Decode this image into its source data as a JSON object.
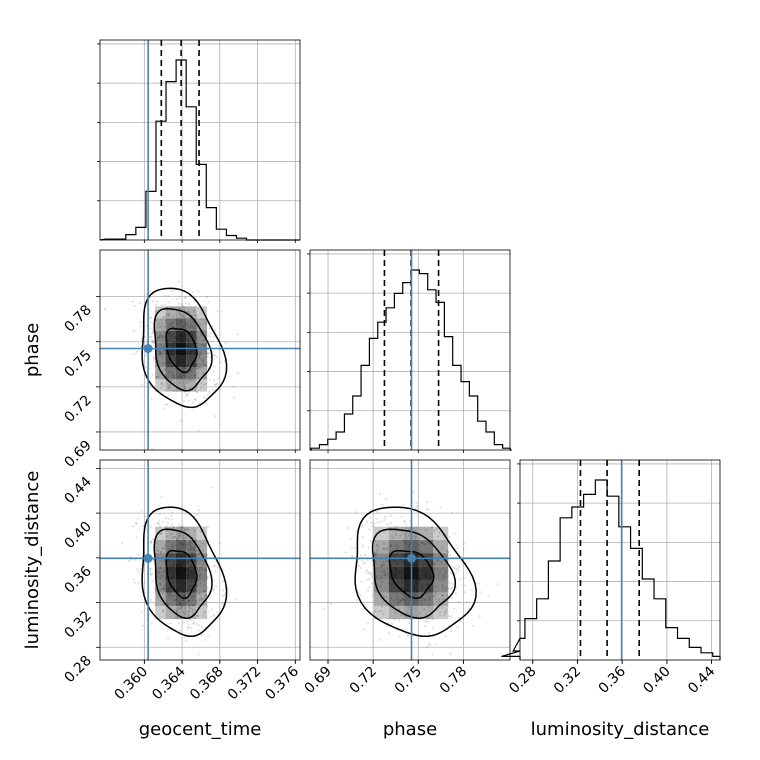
{
  "chart_data": {
    "type": "corner",
    "parameters": [
      "geocent_time",
      "phase",
      "luminosity_distance"
    ],
    "truths": {
      "geocent_time": 0.3604,
      "phase": 0.7455,
      "luminosity_distance": 0.3595
    },
    "medians": {
      "geocent_time": 0.3639,
      "phase": 0.7452,
      "luminosity_distance": 0.3465
    },
    "quantile_16": {
      "geocent_time": 0.3618,
      "phase": 0.7275,
      "luminosity_distance": 0.3227
    },
    "quantile_84": {
      "geocent_time": 0.3658,
      "phase": 0.7635,
      "luminosity_distance": 0.3752
    },
    "ranges": {
      "geocent_time": [
        0.3553,
        0.3765
      ],
      "phase": [
        0.678,
        0.811
      ],
      "luminosity_distance": [
        0.2686,
        0.4475
      ]
    },
    "ticks": {
      "geocent_time": [
        "0.360",
        "0.364",
        "0.368",
        "0.372",
        "0.376"
      ],
      "phase": [
        "0.69",
        "0.72",
        "0.75",
        "0.78"
      ],
      "luminosity_distance": [
        "0.28",
        "0.32",
        "0.36",
        "0.40",
        "0.44"
      ]
    },
    "histograms": {
      "geocent_time": [
        0.005,
        0.005,
        0.03,
        0.07,
        0.27,
        0.66,
        0.88,
        1.0,
        0.74,
        0.42,
        0.18,
        0.06,
        0.025,
        0.01,
        0.0
      ],
      "phase": [
        0.0,
        0.01,
        0.03,
        0.06,
        0.1,
        0.2,
        0.3,
        0.47,
        0.62,
        0.71,
        0.79,
        0.87,
        0.93,
        1.0,
        0.98,
        0.89,
        0.82,
        0.63,
        0.47,
        0.38,
        0.3,
        0.16,
        0.1,
        0.03,
        0.01,
        0.0
      ],
      "luminosity_distance": [
        0.02,
        0.05,
        0.12,
        0.23,
        0.34,
        0.55,
        0.79,
        0.85,
        0.92,
        1.0,
        0.91,
        0.74,
        0.62,
        0.45,
        0.34,
        0.18,
        0.12,
        0.07,
        0.04,
        0.02
      ]
    },
    "grid": true,
    "contour_levels": 3
  }
}
